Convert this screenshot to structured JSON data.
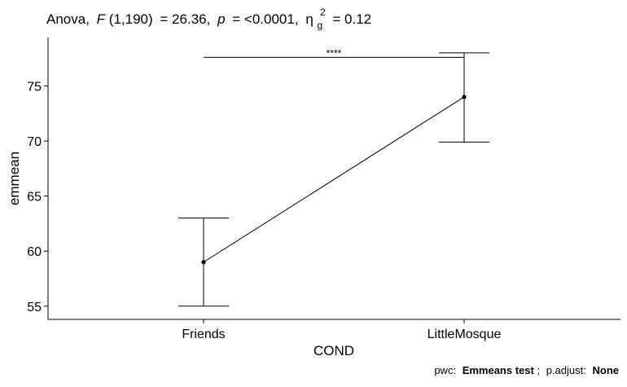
{
  "chart_data": {
    "type": "line",
    "title_parts": {
      "prefix": "Anova,",
      "f_symbol": "F",
      "f_df": "(1,190)",
      "f_value": "= 26.36,",
      "p_symbol": "p",
      "p_value": "= <0.0001,",
      "eta_symbol": "η",
      "eta_sub": "g",
      "eta_sup": "2",
      "eta_value": "= 0.12"
    },
    "xlabel": "COND",
    "ylabel": "emmean",
    "categories": [
      "Friends",
      "LittleMosque"
    ],
    "series": [
      {
        "values": [
          59,
          74
        ],
        "error_lower": [
          55,
          69.9
        ],
        "error_upper": [
          63,
          78
        ]
      }
    ],
    "ylim": [
      53.8,
      79.4
    ],
    "yticks": [
      55,
      60,
      65,
      70,
      75
    ],
    "grid": false,
    "significance": {
      "label": "****",
      "y": 77.6
    },
    "caption": {
      "pwc_label": "pwc:",
      "pwc_value": "Emmeans test",
      "sep": ";",
      "adjust_label": "p.adjust:",
      "adjust_value": "None"
    }
  }
}
